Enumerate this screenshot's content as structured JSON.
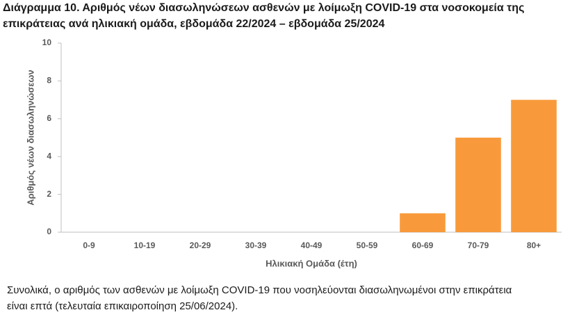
{
  "chart_data": {
    "type": "bar",
    "title": "Διάγραμμα 10. Αριθμός νέων διασωληνώσεων ασθενών με λοίμωξη COVID-19 στα νοσοκομεία της επικράτειας ανά ηλικιακή ομάδα, εβδομάδα 22/2024 – εβδομάδα 25/2024",
    "y_label": "Αριθμός νέων διασωληνώσεων",
    "x_label": "Ηλικιακή Ομάδα (έτη)",
    "categories": [
      "0-9",
      "10-19",
      "20-29",
      "30-39",
      "40-49",
      "50-59",
      "60-69",
      "70-79",
      "80+"
    ],
    "values": [
      0,
      0,
      0,
      0,
      0,
      0,
      1,
      5,
      7
    ],
    "color": "#f89a3c",
    "ylim": [
      0,
      10
    ],
    "yticks": [
      0,
      2,
      4,
      6,
      8,
      10
    ],
    "grid": false,
    "caption": [
      "Συνολικά, ο αριθμός των ασθενών με λοίμωξη COVID-19 που νοσηλεύονται διασωληνωμένοι στην επικράτεια",
      "είναι επτά (τελευταία επικαιροποίηση 25/06/2024)."
    ]
  }
}
